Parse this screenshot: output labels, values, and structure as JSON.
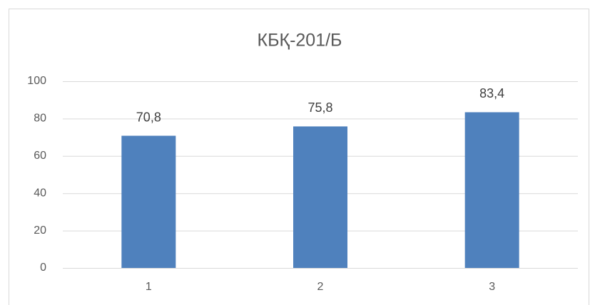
{
  "chart_data": {
    "type": "bar",
    "title": "КБҚ-201/Б",
    "categories": [
      "1",
      "2",
      "3"
    ],
    "values": [
      70.8,
      75.8,
      83.4
    ],
    "value_labels": [
      "70,8",
      "75,8",
      "83,4"
    ],
    "color": "#4f81bd",
    "ylim": [
      0,
      100
    ],
    "yticks": [
      0,
      20,
      40,
      60,
      80,
      100
    ],
    "grid": true
  }
}
